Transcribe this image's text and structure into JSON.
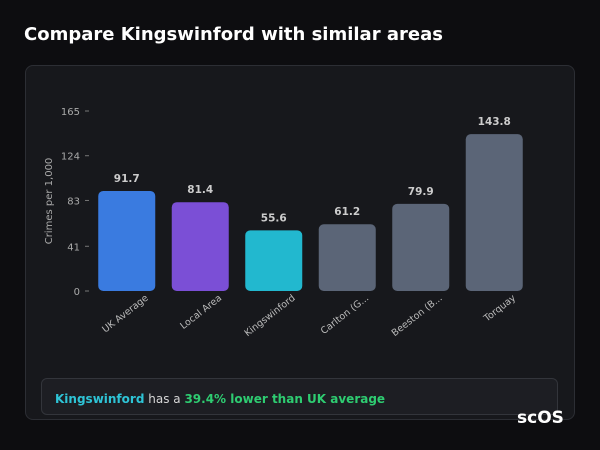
{
  "chart_data": {
    "type": "bar",
    "title": "Compare Kingswinford with similar areas",
    "y_label": "Crimes per 1,000",
    "categories": [
      "UK Average",
      "Local Area",
      "Kingswinford",
      "Carlton (G...",
      "Beeston (B...",
      "Torquay"
    ],
    "values": [
      91.7,
      81.4,
      55.6,
      61.2,
      79.9,
      143.8
    ],
    "colors": [
      "#3a7be0",
      "#7b4fd6",
      "#22b8cf",
      "#5b6577",
      "#5b6577",
      "#5b6577"
    ],
    "ylim": [
      0,
      165
    ],
    "yticks": [
      0,
      41,
      83,
      124,
      165
    ]
  },
  "summary": {
    "area": "Kingswinford",
    "text": "has a",
    "highlight": "39.4% lower than UK average"
  },
  "logo": "scOS"
}
